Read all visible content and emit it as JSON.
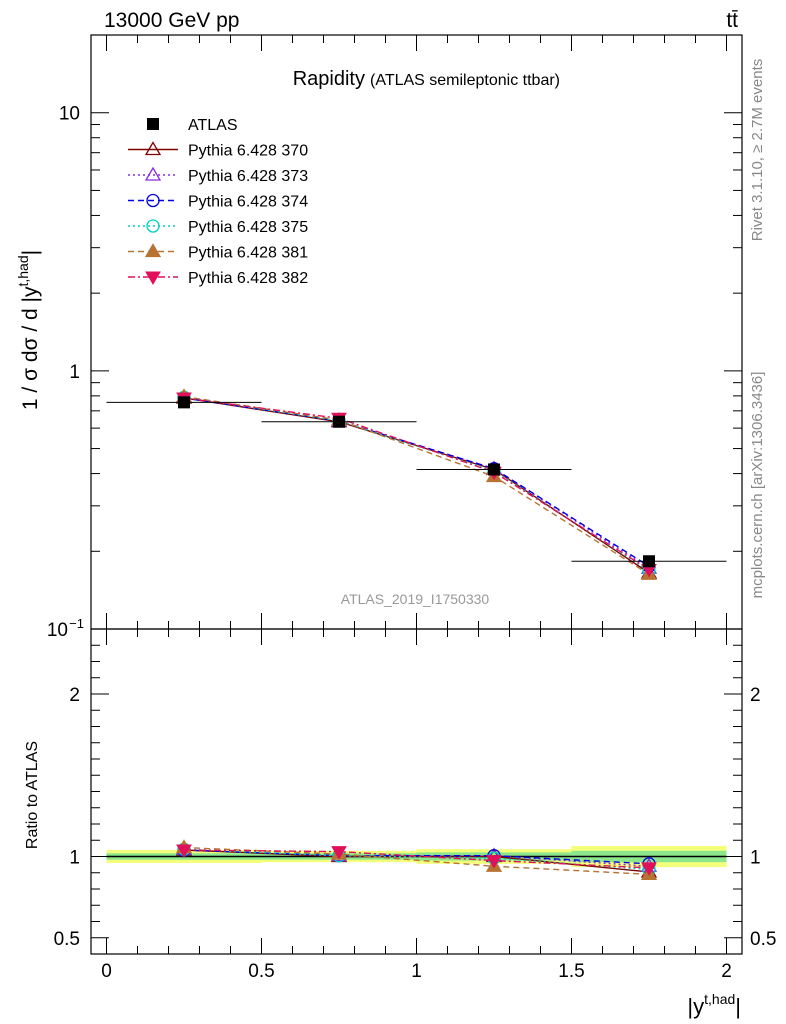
{
  "header": {
    "left": "13000 GeV pp",
    "right": "tt̄"
  },
  "side_text": {
    "rivet": "Rivet 3.1.10, ≥ 2.7M events",
    "mcplots": "mcplots.cern.ch [arXiv:1306.3436]"
  },
  "chart_data": [
    {
      "type": "line",
      "title": "Rapidity",
      "subtitle": "(ATLAS semileptonic ttbar)",
      "watermark": "ATLAS_2019_I1750330",
      "ylabel": "1 / σ dσ / d |y^{t,had}|",
      "ylabel_parts": {
        "main": "1 / σ dσ / d |y",
        "sup": "t,had",
        "end": "|"
      },
      "yscale": "log",
      "ylim": [
        0.1,
        20
      ],
      "xlim": [
        -0.05,
        2.05
      ],
      "y_ticks": [
        {
          "value": 0.1,
          "label": "10",
          "exp": "−1"
        },
        {
          "value": 1,
          "label": "1",
          "exp": ""
        },
        {
          "value": 10,
          "label": "10",
          "exp": ""
        }
      ],
      "legend_position": "top-left",
      "x": [
        0.25,
        0.75,
        1.25,
        1.75
      ],
      "xerr": 0.25,
      "series": [
        {
          "name": "ATLAS",
          "values": [
            0.755,
            0.635,
            0.415,
            0.183
          ],
          "color": "#000000",
          "marker": "square-filled",
          "dash": "none",
          "is_data": true
        },
        {
          "name": "Pythia 6.428 370",
          "values": [
            0.785,
            0.635,
            0.415,
            0.165
          ],
          "color": "#800000",
          "marker": "triangle-open",
          "dash": "solid"
        },
        {
          "name": "Pythia 6.428 373",
          "values": [
            0.79,
            0.64,
            0.418,
            0.172
          ],
          "color": "#8a2be2",
          "marker": "triangle-open",
          "dash": "dot"
        },
        {
          "name": "Pythia 6.428 374",
          "values": [
            0.785,
            0.64,
            0.418,
            0.175
          ],
          "color": "#0000e0",
          "marker": "circle-open",
          "dash": "dash"
        },
        {
          "name": "Pythia 6.428 375",
          "values": [
            0.79,
            0.64,
            0.41,
            0.168
          ],
          "color": "#00d0c0",
          "marker": "circle-open",
          "dash": "dot"
        },
        {
          "name": "Pythia 6.428 381",
          "values": [
            0.795,
            0.645,
            0.39,
            0.163
          ],
          "color": "#b87333",
          "marker": "triangle-filled",
          "dash": "dash"
        },
        {
          "name": "Pythia 6.428 382",
          "values": [
            0.785,
            0.655,
            0.405,
            0.17
          ],
          "color": "#e0105a",
          "marker": "triangle-down-filled",
          "dash": "dashdot"
        }
      ]
    },
    {
      "type": "line",
      "ylabel": "Ratio to ATLAS",
      "xlabel": "|y^{t,had}|",
      "xlabel_parts": {
        "main": "|y",
        "sup": "t,had",
        "end": "|"
      },
      "ylim": [
        0.4,
        2.4
      ],
      "xlim": [
        -0.05,
        2.05
      ],
      "x_ticks": [
        {
          "value": 0,
          "label": "0"
        },
        {
          "value": 0.5,
          "label": "0.5"
        },
        {
          "value": 1,
          "label": "1"
        },
        {
          "value": 1.5,
          "label": "1.5"
        },
        {
          "value": 2,
          "label": "2"
        }
      ],
      "y_ticks": [
        {
          "value": 0.5,
          "label": "0.5"
        },
        {
          "value": 1,
          "label": "1"
        },
        {
          "value": 2,
          "label": "2"
        }
      ],
      "bands": [
        {
          "x0": 0,
          "x1": 0.5,
          "outer": [
            0.96,
            1.04
          ],
          "inner": [
            0.98,
            1.02
          ]
        },
        {
          "x0": 0.5,
          "x1": 1.0,
          "outer": [
            0.965,
            1.035
          ],
          "inner": [
            0.98,
            1.02
          ]
        },
        {
          "x0": 1.0,
          "x1": 1.5,
          "outer": [
            0.955,
            1.045
          ],
          "inner": [
            0.975,
            1.025
          ]
        },
        {
          "x0": 1.5,
          "x1": 2.0,
          "outer": [
            0.935,
            1.065
          ],
          "inner": [
            0.965,
            1.035
          ]
        }
      ],
      "band_colors": {
        "outer": "#f4ff7a",
        "inner": "#8ce68c"
      },
      "ratios": [
        [
          1.04,
          1.0,
          1.0,
          0.905
        ],
        [
          1.045,
          1.005,
          1.005,
          0.94
        ],
        [
          1.04,
          1.005,
          1.005,
          0.955
        ],
        [
          1.045,
          1.005,
          0.99,
          0.92
        ],
        [
          1.055,
          1.015,
          0.94,
          0.89
        ],
        [
          1.04,
          1.03,
          0.975,
          0.93
        ]
      ]
    }
  ]
}
